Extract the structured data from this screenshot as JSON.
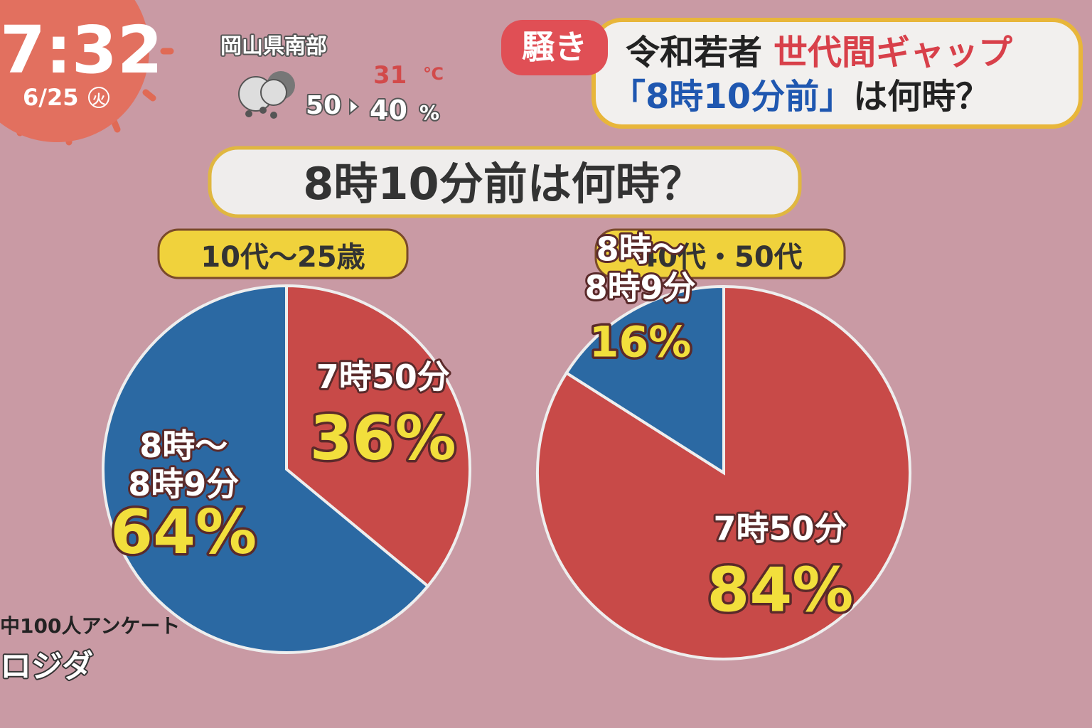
{
  "clock": {
    "time": "7:32",
    "date": "6/25",
    "weekday": "火"
  },
  "weather": {
    "region": "岡山県南部",
    "temp": "31",
    "temp_unit": "℃",
    "precip_from": "50",
    "precip_to": "40",
    "precip_unit": "%"
  },
  "headline": {
    "tag": "騒き",
    "line1": [
      "令和若者",
      "世代間ギャップ"
    ],
    "line2": [
      "「8時10分前」",
      "は何時？"
    ]
  },
  "title": "8時10分前は何時？",
  "footnote": [
    "中100人アンケート",
    "ロジダ"
  ],
  "chart_data": [
    {
      "type": "pie",
      "title": "10代～25歳",
      "categories": [
        "7時50分",
        "8時～8時9分"
      ],
      "values": [
        36,
        64
      ],
      "value_labels": [
        "36%",
        "64%"
      ],
      "colors": [
        "#c84a48",
        "#2b69a3"
      ]
    },
    {
      "type": "pie",
      "title": "40代・50代",
      "categories": [
        "7時50分",
        "8時～8時9分"
      ],
      "values": [
        84,
        16
      ],
      "value_labels": [
        "84%",
        "16%"
      ],
      "colors": [
        "#c84a48",
        "#2b69a3"
      ]
    }
  ]
}
